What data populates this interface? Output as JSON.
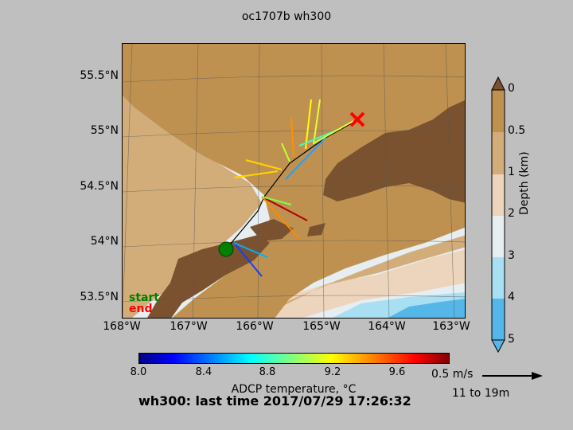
{
  "title": "oc1707b wh300",
  "map": {
    "lat_ticks": [
      "55.5°N",
      "55°N",
      "54.5°N",
      "54°N",
      "53.5°N"
    ],
    "lon_ticks": [
      "168°W",
      "167°W",
      "166°W",
      "165°W",
      "164°W",
      "163°W"
    ],
    "start_label": "start",
    "end_label": "end",
    "colors": {
      "land": "#7a5230",
      "shelf": "#bf9150",
      "slope": "#d2ad7a",
      "deep1": "#ecd5bc",
      "deep2": "#e6eef2",
      "deep3": "#a9dff2",
      "deep4": "#55b6e8",
      "start": "#008000",
      "end": "#ff0000"
    }
  },
  "depth_colorbar": {
    "label": "Depth (km)",
    "ticks": [
      "0",
      "0.5",
      "1",
      "2",
      "3",
      "4",
      "5"
    ]
  },
  "temperature_colorbar": {
    "label": "ADCP temperature, °C",
    "ticks": [
      "8.0",
      "8.4",
      "8.8",
      "9.2",
      "9.6"
    ],
    "range": [
      8.0,
      10.0
    ],
    "colormap": "jet"
  },
  "scale_arrow": {
    "speed_label": "0.5 m/s",
    "depth_range": "11 to 19m"
  },
  "footer": "wh300: last time 2017/07/29 17:26:32"
}
